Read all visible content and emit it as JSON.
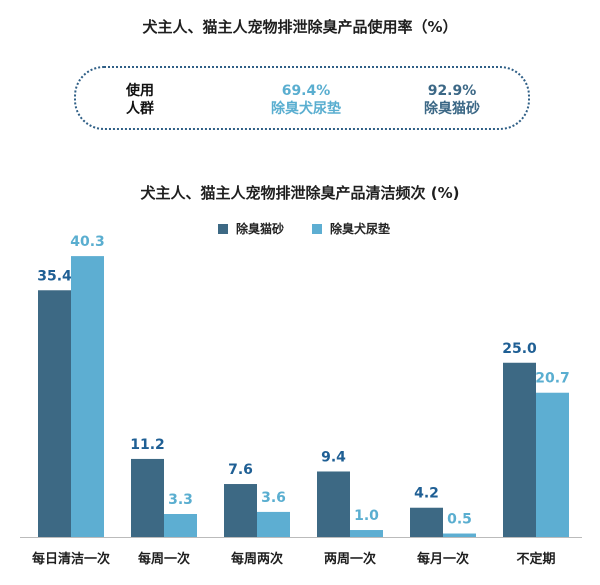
{
  "usage": {
    "title": "犬主人、猫主人宠物排泄除臭产品使用率（%）",
    "label_line1": "使用",
    "label_line2": "人群",
    "items": [
      {
        "value": "69.4%",
        "name": "除臭犬尿垫"
      },
      {
        "value": "92.9%",
        "name": "除臭猫砂"
      }
    ]
  },
  "colors": {
    "cat": "#3d6984",
    "dog": "#5daed2",
    "cat_label": "#1f5f94",
    "dog_label": "#5aaed0"
  },
  "chart_data": {
    "type": "bar",
    "title": "犬主人、猫主人宠物排泄除臭产品清洁频次 (%)",
    "categories": [
      "每日清洁一次",
      "每周一次",
      "每周两次",
      "两周一次",
      "每月一次",
      "不定期"
    ],
    "series": [
      {
        "name": "除臭猫砂",
        "values": [
          35.4,
          11.2,
          7.6,
          9.4,
          4.2,
          25.0
        ]
      },
      {
        "name": "除臭犬尿垫",
        "values": [
          40.3,
          3.3,
          3.6,
          1.0,
          0.5,
          20.7
        ]
      }
    ],
    "value_labels": [
      [
        "35.4",
        "11.2",
        "7.6",
        "9.4",
        "4.2",
        "25.0"
      ],
      [
        "40.3",
        "3.3",
        "3.6",
        "1.0",
        "0.5",
        "20.7"
      ]
    ],
    "legend_position": "top-center",
    "grid": false
  }
}
